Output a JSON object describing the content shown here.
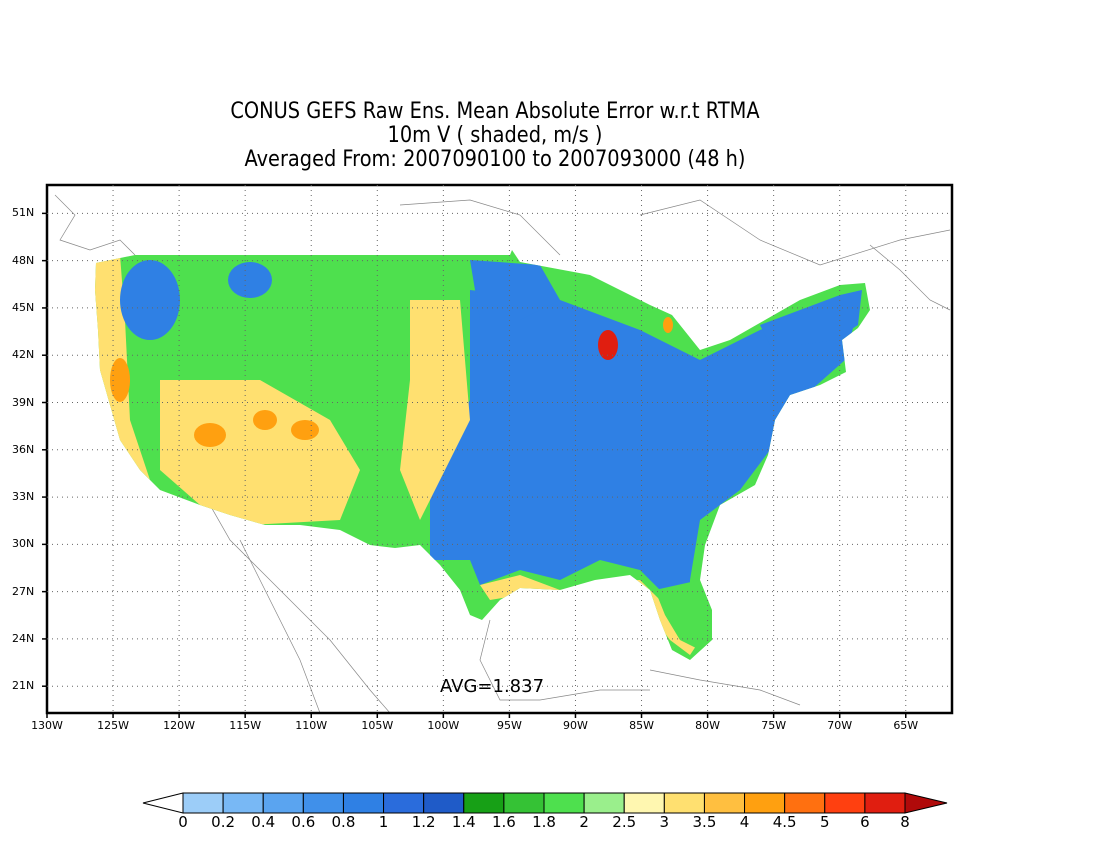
{
  "title": {
    "line1": "CONUS GEFS Raw Ens. Mean Absolute Error w.r.t RTMA",
    "line2": "10m V ( shaded, m/s )",
    "line3": "Averaged From: 2007090100 to 2007093000 (48 h)"
  },
  "annotation": {
    "avg": "AVG=1.837"
  },
  "axes": {
    "lon_labels": [
      "130W",
      "125W",
      "120W",
      "115W",
      "110W",
      "105W",
      "100W",
      "95W",
      "90W",
      "85W",
      "80W",
      "75W",
      "70W",
      "65W"
    ],
    "lat_labels": [
      "21N",
      "24N",
      "27N",
      "30N",
      "33N",
      "36N",
      "39N",
      "42N",
      "45N",
      "48N",
      "51N"
    ],
    "lon_range": [
      -130,
      -61.5
    ],
    "lat_range": [
      19.3,
      52.8
    ],
    "grid": "dotted"
  },
  "colorbar": {
    "labels": [
      "0",
      "0.2",
      "0.4",
      "0.6",
      "0.8",
      "1",
      "1.2",
      "1.4",
      "1.6",
      "1.8",
      "2",
      "2.5",
      "3",
      "3.5",
      "4",
      "4.5",
      "5",
      "6",
      "8"
    ],
    "colors": [
      "#9ccdf8",
      "#78b8f5",
      "#5aa4f0",
      "#4090ea",
      "#2f80e4",
      "#2a6cdc",
      "#1f5bc8",
      "#17a016",
      "#35c235",
      "#4ee04e",
      "#9aef8c",
      "#fff7b0",
      "#ffe070",
      "#ffbf40",
      "#ffa010",
      "#ff7010",
      "#ff4010",
      "#e01e10",
      "#b00a0a"
    ]
  },
  "map_regions": [
    {
      "name": "west-mixed",
      "color": "#4ee04e"
    },
    {
      "name": "east-blue",
      "color": "#2f80e4"
    },
    {
      "name": "hotspot-orange",
      "color": "#ffa010"
    },
    {
      "name": "hotspot-red",
      "color": "#e01e10"
    },
    {
      "name": "coast-yellow",
      "color": "#ffe070"
    }
  ]
}
